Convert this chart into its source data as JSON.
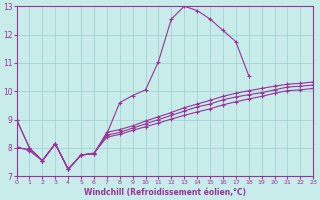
{
  "xlabel": "Windchill (Refroidissement éolien,°C)",
  "xlim": [
    0,
    23
  ],
  "ylim": [
    7,
    13
  ],
  "xticks": [
    0,
    1,
    2,
    3,
    4,
    5,
    6,
    7,
    8,
    9,
    10,
    11,
    12,
    13,
    14,
    15,
    16,
    17,
    18,
    19,
    20,
    21,
    22,
    23
  ],
  "yticks": [
    7,
    8,
    9,
    10,
    11,
    12,
    13
  ],
  "bg_color": "#c8ecea",
  "grid_color": "#9ecece",
  "line_color": "#993399",
  "line_width": 0.8,
  "marker": "+",
  "markersize": 3,
  "markeredgewidth": 0.8,
  "lines": [
    {
      "x": [
        0,
        1,
        2,
        3,
        4,
        5,
        6,
        7,
        8,
        9,
        10,
        11,
        12,
        13,
        14,
        15,
        16,
        17,
        18
      ],
      "y": [
        9.0,
        8.0,
        7.55,
        8.15,
        7.25,
        7.75,
        7.8,
        8.5,
        9.6,
        9.85,
        10.05,
        11.05,
        12.55,
        13.0,
        12.85,
        12.55,
        12.15,
        11.75,
        10.55
      ]
    },
    {
      "x": [
        0,
        1,
        2,
        3,
        4,
        5,
        6,
        7,
        8,
        9,
        10,
        11,
        12,
        13,
        14,
        15,
        16,
        17,
        18,
        19,
        20,
        21,
        22,
        23
      ],
      "y": [
        8.0,
        7.95,
        7.55,
        8.15,
        7.25,
        7.75,
        7.8,
        8.45,
        8.55,
        8.7,
        8.85,
        9.0,
        9.15,
        9.3,
        9.45,
        9.55,
        9.7,
        9.8,
        9.88,
        9.95,
        10.05,
        10.15,
        10.18,
        10.22
      ]
    },
    {
      "x": [
        0,
        1,
        2,
        3,
        4,
        5,
        6,
        7,
        8,
        9,
        10,
        11,
        12,
        13,
        14,
        15,
        16,
        17,
        18,
        19,
        20,
        21,
        22,
        23
      ],
      "y": [
        8.05,
        7.9,
        7.55,
        8.15,
        7.25,
        7.75,
        7.82,
        8.38,
        8.48,
        8.62,
        8.75,
        8.88,
        9.02,
        9.15,
        9.27,
        9.38,
        9.52,
        9.63,
        9.73,
        9.82,
        9.93,
        10.02,
        10.05,
        10.1
      ]
    },
    {
      "x": [
        0,
        1,
        2,
        3,
        4,
        5,
        6,
        7,
        8,
        9,
        10,
        11,
        12,
        13,
        14,
        15,
        16,
        17,
        18,
        19,
        20,
        21,
        22,
        23
      ],
      "y": [
        9.0,
        8.0,
        7.55,
        8.15,
        7.25,
        7.75,
        7.8,
        8.55,
        8.65,
        8.78,
        8.95,
        9.1,
        9.25,
        9.42,
        9.55,
        9.68,
        9.82,
        9.93,
        10.02,
        10.1,
        10.18,
        10.25,
        10.28,
        10.33
      ]
    }
  ]
}
